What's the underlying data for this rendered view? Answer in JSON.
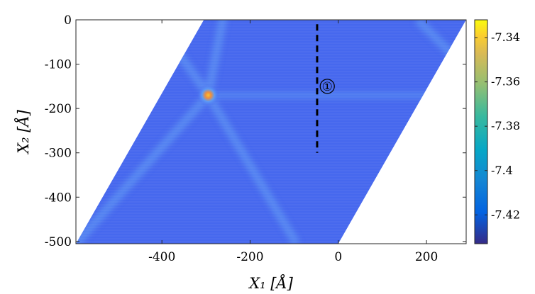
{
  "chart_data": {
    "type": "heatmap",
    "title": "",
    "xlabel": "X₁ [Å]",
    "ylabel": "X₂ [Å]",
    "xlim": [
      -595,
      290
    ],
    "ylim": [
      -505,
      0
    ],
    "x_ticks": [
      -400,
      -200,
      0,
      200
    ],
    "y_ticks": [
      0,
      -100,
      -200,
      -300,
      -400,
      -500
    ],
    "x_tick_labels": [
      "-400",
      "-200",
      "0",
      "200"
    ],
    "y_tick_labels": [
      "0",
      "-100",
      "-200",
      "-300",
      "-400",
      "-500"
    ],
    "colorbar": {
      "min": -7.433,
      "max": -7.332,
      "ticks": [
        -7.34,
        -7.36,
        -7.38,
        -7.4,
        -7.42
      ],
      "tick_labels": [
        "-7.34",
        "-7.36",
        "-7.38",
        "-7.4",
        "-7.42"
      ],
      "colormap": "parula"
    },
    "domain": "parallelogram",
    "domain_corners": [
      [
        -305,
        0
      ],
      [
        290,
        0
      ],
      [
        0,
        -505
      ],
      [
        -595,
        -505
      ]
    ],
    "background_value": -7.425,
    "hotspot": {
      "x": -295,
      "y": -170,
      "value": -7.355
    },
    "annotation": {
      "label": "①",
      "x": -25,
      "y": -150
    },
    "dashed_line": {
      "x": -48,
      "y_start": -10,
      "y_end": -300
    }
  }
}
